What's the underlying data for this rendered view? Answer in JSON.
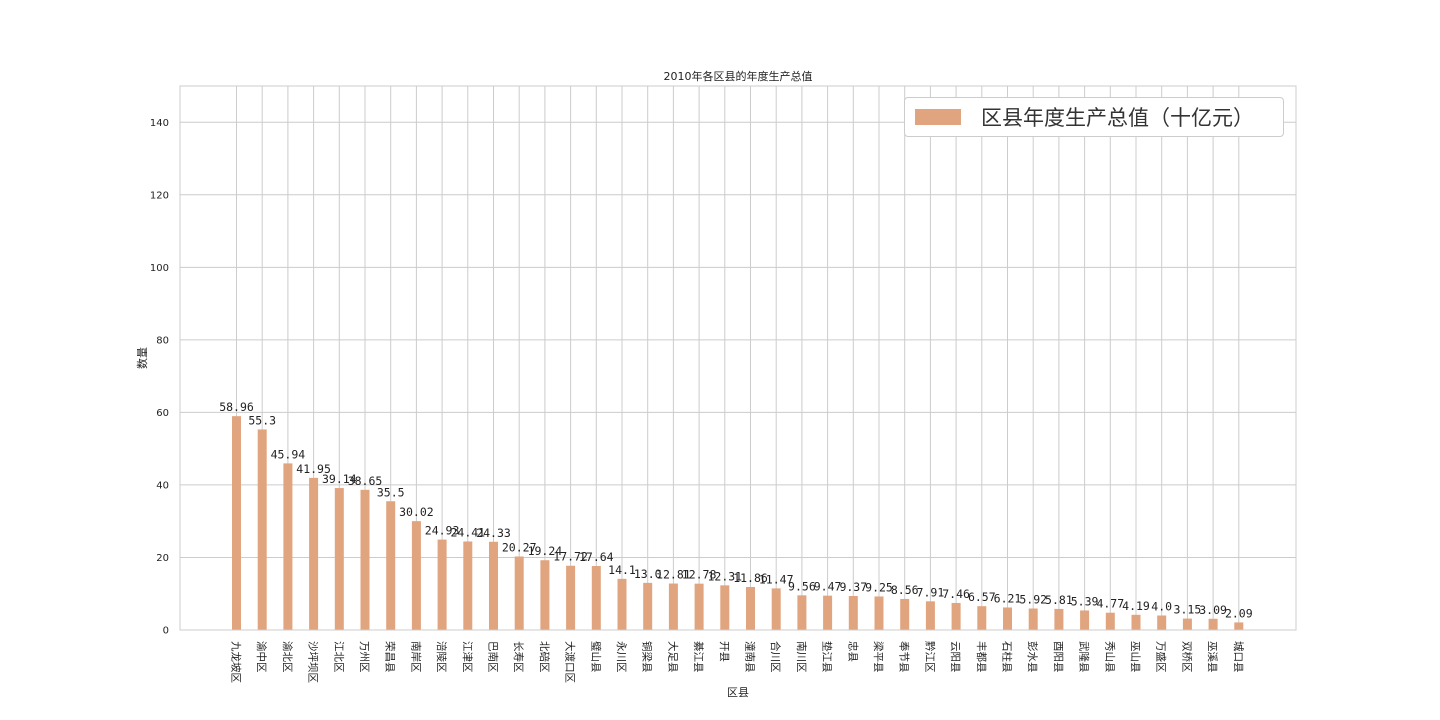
{
  "chart_data": {
    "type": "bar",
    "title": "2010年各区县的年度生产总值",
    "xlabel": "区县",
    "ylabel": "数量",
    "ylim": [
      0,
      150
    ],
    "yticks": [
      0,
      20,
      40,
      60,
      80,
      100,
      120,
      140
    ],
    "grid": true,
    "legend_position": "top-right",
    "categories": [
      "九龙坡区",
      "渝中区",
      "渝北区",
      "沙坪坝区",
      "江北区",
      "万州区",
      "荣昌县",
      "南岸区",
      "涪陵区",
      "江津区",
      "巴南区",
      "长寿区",
      "北碚区",
      "大渡口区",
      "璧山县",
      "永川区",
      "铜梁县",
      "大足县",
      "綦江县",
      "开县",
      "潼南县",
      "合川区",
      "南川区",
      "垫江县",
      "忠县",
      "梁平县",
      "奉节县",
      "黔江区",
      "云阳县",
      "丰都县",
      "石柱县",
      "彭水县",
      "酉阳县",
      "武隆县",
      "秀山县",
      "巫山县",
      "万盛区",
      "双桥区",
      "巫溪县",
      "城口县"
    ],
    "series": [
      {
        "name": "区县年度生产总值（十亿元）",
        "color": "#E0A47E",
        "values": [
          58.96,
          55.3,
          45.94,
          41.95,
          39.14,
          38.65,
          35.5,
          30.02,
          24.93,
          24.41,
          24.33,
          20.27,
          19.24,
          17.72,
          17.64,
          14.1,
          13.0,
          12.81,
          12.78,
          12.31,
          11.86,
          11.47,
          9.56,
          9.47,
          9.37,
          9.25,
          8.56,
          7.91,
          7.46,
          6.57,
          6.21,
          5.92,
          5.81,
          5.39,
          4.77,
          4.19,
          4.0,
          3.15,
          3.09,
          2.09
        ]
      }
    ],
    "value_labels": [
      "58.96",
      "55.3",
      "45.94",
      "41.95",
      "39.14",
      "38.65",
      "35.5",
      "30.02",
      "24.93",
      "24.41",
      "24.33",
      "20.27",
      "19.24",
      "17.72",
      "17.64",
      "14.1",
      "13.0",
      "12.81",
      "12.78",
      "12.31",
      "11.86",
      "11.47",
      "9.56",
      "9.47",
      "9.37",
      "9.25",
      "8.56",
      "7.91",
      "7.46",
      "6.57",
      "6.21",
      "5.92",
      "5.81",
      "5.39",
      "4.77",
      "4.19",
      "4.0",
      "3.15",
      "3.09",
      "2.09"
    ]
  }
}
